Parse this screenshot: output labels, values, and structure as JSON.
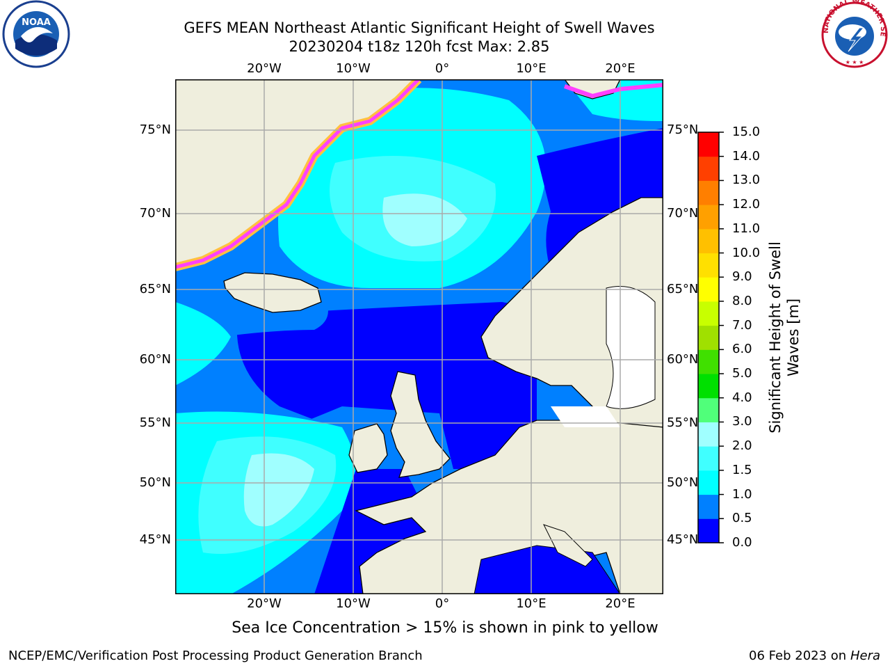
{
  "title": {
    "line1": "GEFS MEAN Northeast Atlantic Significant Height of Swell Waves",
    "line2": "20230204 t18z 120h fcst   Max: 2.85"
  },
  "logos": {
    "left": {
      "icon": "noaa-logo-icon",
      "text": "NOAA"
    },
    "right": {
      "icon": "nws-logo-icon",
      "text": "NATIONAL WEATHER SERVICE"
    }
  },
  "map": {
    "lat_labels": [
      "75°N",
      "70°N",
      "65°N",
      "60°N",
      "55°N",
      "50°N",
      "45°N"
    ],
    "lon_labels": [
      "20°W",
      "10°W",
      "0°",
      "10°E",
      "20°E"
    ],
    "land_color": "#efeedd",
    "ice_colors": [
      "#ff40ff",
      "#ffff00"
    ]
  },
  "colorbar": {
    "label_line1": "Significant Height of Swell",
    "label_line2": "Waves [m]",
    "ticks": [
      "15.0",
      "14.0",
      "13.0",
      "12.0",
      "11.0",
      "10.0",
      "9.0",
      "8.0",
      "7.0",
      "6.0",
      "5.0",
      "4.0",
      "3.0",
      "2.0",
      "1.5",
      "1.0",
      "0.5",
      "0.0"
    ],
    "colors": [
      "#0000ff",
      "#0080ff",
      "#00ffff",
      "#40ffff",
      "#a0ffff",
      "#50ff7a",
      "#00e000",
      "#40e000",
      "#a0e000",
      "#c8ff00",
      "#ffff00",
      "#ffe000",
      "#ffc000",
      "#ffa000",
      "#ff7f00",
      "#ff4000",
      "#ff0000"
    ]
  },
  "notes": {
    "ice": "Sea Ice Concentration > 15% is shown in pink to yellow"
  },
  "footer": {
    "left": "NCEP/EMC/Verification Post Processing Product Generation Branch",
    "right_date": "06 Feb 2023 on",
    "right_machine": "Hera"
  }
}
